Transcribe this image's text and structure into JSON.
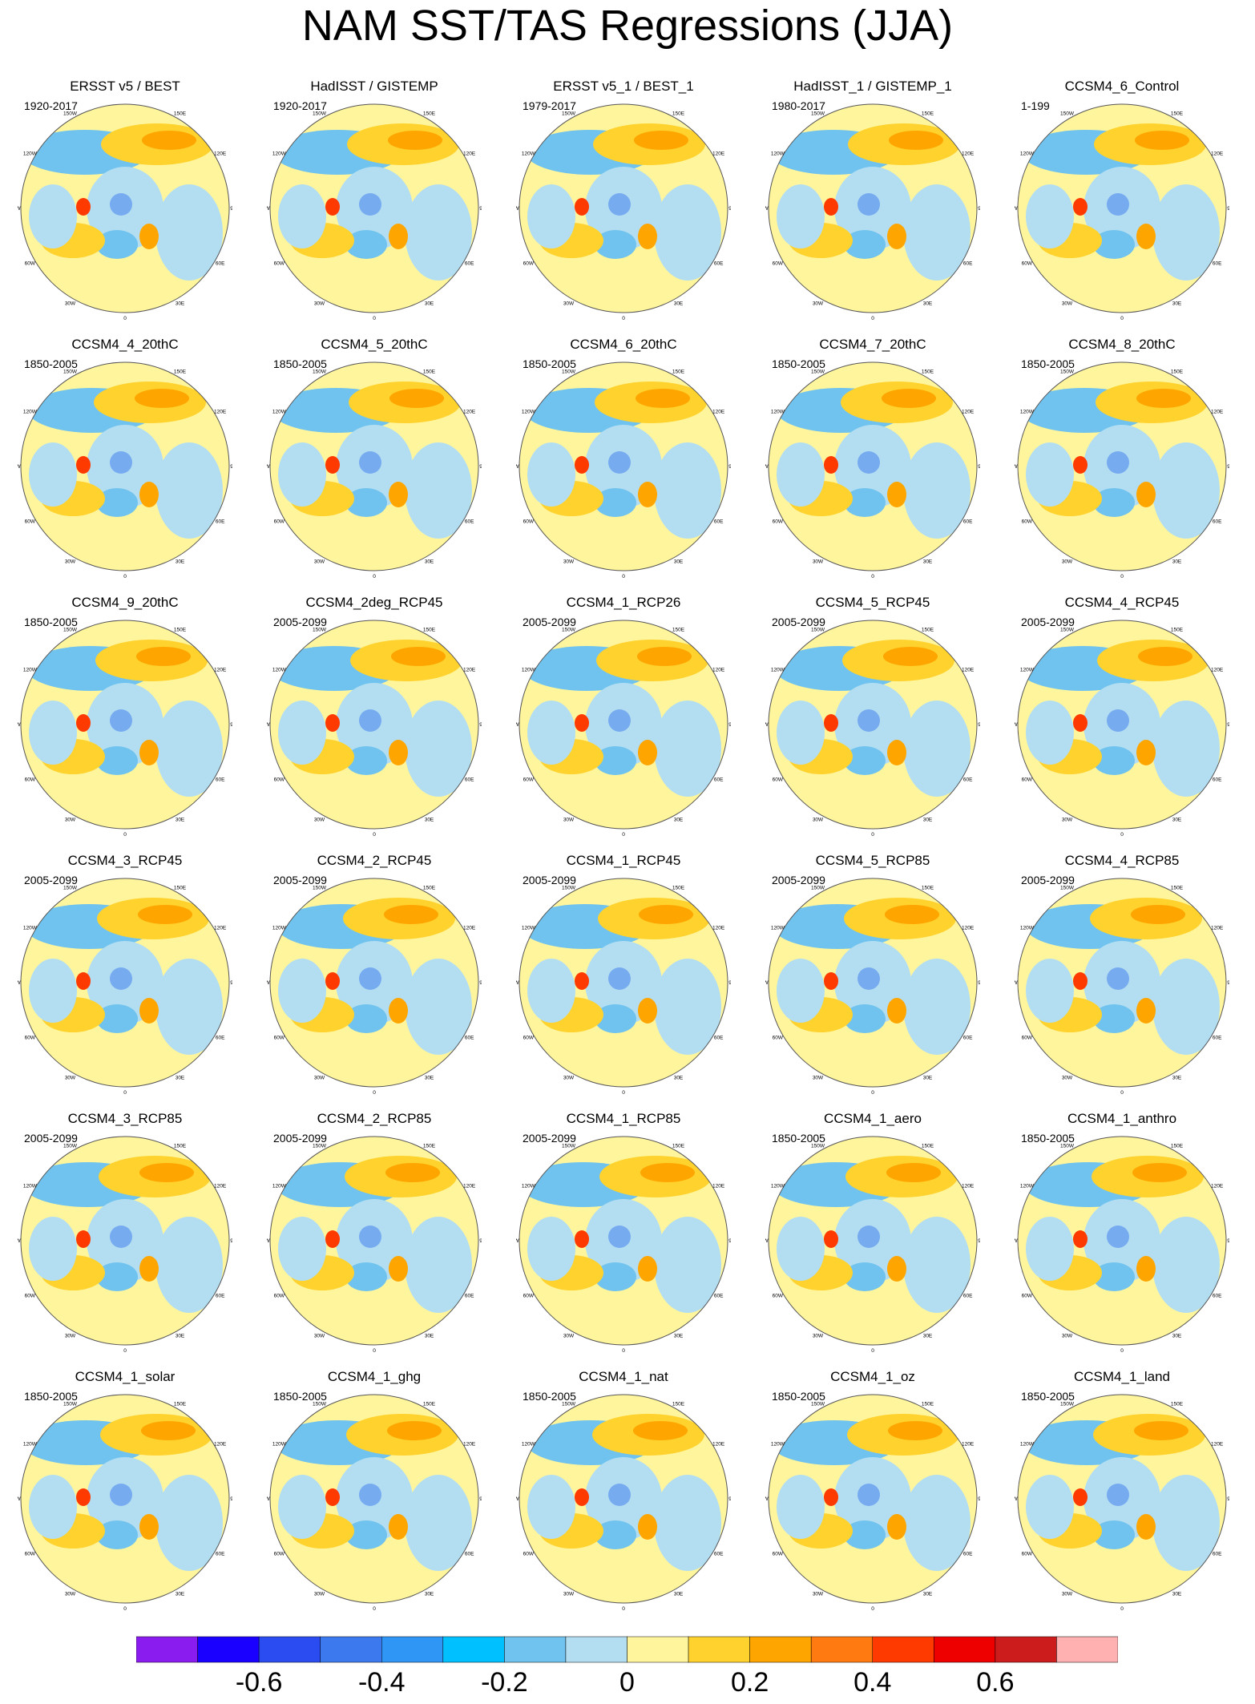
{
  "title": "NAM SST/TAS Regressions (JJA)",
  "panels": [
    {
      "name": "ERSST v5 / BEST",
      "period": "1920-2017"
    },
    {
      "name": "HadISST / GISTEMP",
      "period": "1920-2017"
    },
    {
      "name": "ERSST v5_1 / BEST_1",
      "period": "1979-2017"
    },
    {
      "name": "HadISST_1 / GISTEMP_1",
      "period": "1980-2017"
    },
    {
      "name": "CCSM4_6_Control",
      "period": "1-199"
    },
    {
      "name": "CCSM4_4_20thC",
      "period": "1850-2005"
    },
    {
      "name": "CCSM4_5_20thC",
      "period": "1850-2005"
    },
    {
      "name": "CCSM4_6_20thC",
      "period": "1850-2005"
    },
    {
      "name": "CCSM4_7_20thC",
      "period": "1850-2005"
    },
    {
      "name": "CCSM4_8_20thC",
      "period": "1850-2005"
    },
    {
      "name": "CCSM4_9_20thC",
      "period": "1850-2005"
    },
    {
      "name": "CCSM4_2deg_RCP45",
      "period": "2005-2099"
    },
    {
      "name": "CCSM4_1_RCP26",
      "period": "2005-2099"
    },
    {
      "name": "CCSM4_5_RCP45",
      "period": "2005-2099"
    },
    {
      "name": "CCSM4_4_RCP45",
      "period": "2005-2099"
    },
    {
      "name": "CCSM4_3_RCP45",
      "period": "2005-2099"
    },
    {
      "name": "CCSM4_2_RCP45",
      "period": "2005-2099"
    },
    {
      "name": "CCSM4_1_RCP45",
      "period": "2005-2099"
    },
    {
      "name": "CCSM4_5_RCP85",
      "period": "2005-2099"
    },
    {
      "name": "CCSM4_4_RCP85",
      "period": "2005-2099"
    },
    {
      "name": "CCSM4_3_RCP85",
      "period": "2005-2099"
    },
    {
      "name": "CCSM4_2_RCP85",
      "period": "2005-2099"
    },
    {
      "name": "CCSM4_1_RCP85",
      "period": "2005-2099"
    },
    {
      "name": "CCSM4_1_aero",
      "period": "1850-2005"
    },
    {
      "name": "CCSM4_1_anthro",
      "period": "1850-2005"
    },
    {
      "name": "CCSM4_1_solar",
      "period": "1850-2005"
    },
    {
      "name": "CCSM4_1_ghg",
      "period": "1850-2005"
    },
    {
      "name": "CCSM4_1_nat",
      "period": "1850-2005"
    },
    {
      "name": "CCSM4_1_oz",
      "period": "1850-2005"
    },
    {
      "name": "CCSM4_1_land",
      "period": "1850-2005"
    }
  ],
  "longitude_labels": [
    "180",
    "150E",
    "120E",
    "90E",
    "60E",
    "30E",
    "0",
    "30W",
    "60W",
    "90W",
    "120W",
    "150W"
  ],
  "colorbar": {
    "colors": [
      "#8b1cf0",
      "#1a00ff",
      "#2b4cf0",
      "#3c78ee",
      "#2f96f6",
      "#00c0ff",
      "#70c3ee",
      "#b3def2",
      "#fff59d",
      "#ffd22e",
      "#ffa500",
      "#ff7a10",
      "#ff3a00",
      "#ee0000",
      "#cc1c1c",
      "#ffb0b0"
    ],
    "tick_labels": [
      "-0.6",
      "-0.4",
      "-0.2",
      "0",
      "0.2",
      "0.4",
      "0.6"
    ]
  }
}
